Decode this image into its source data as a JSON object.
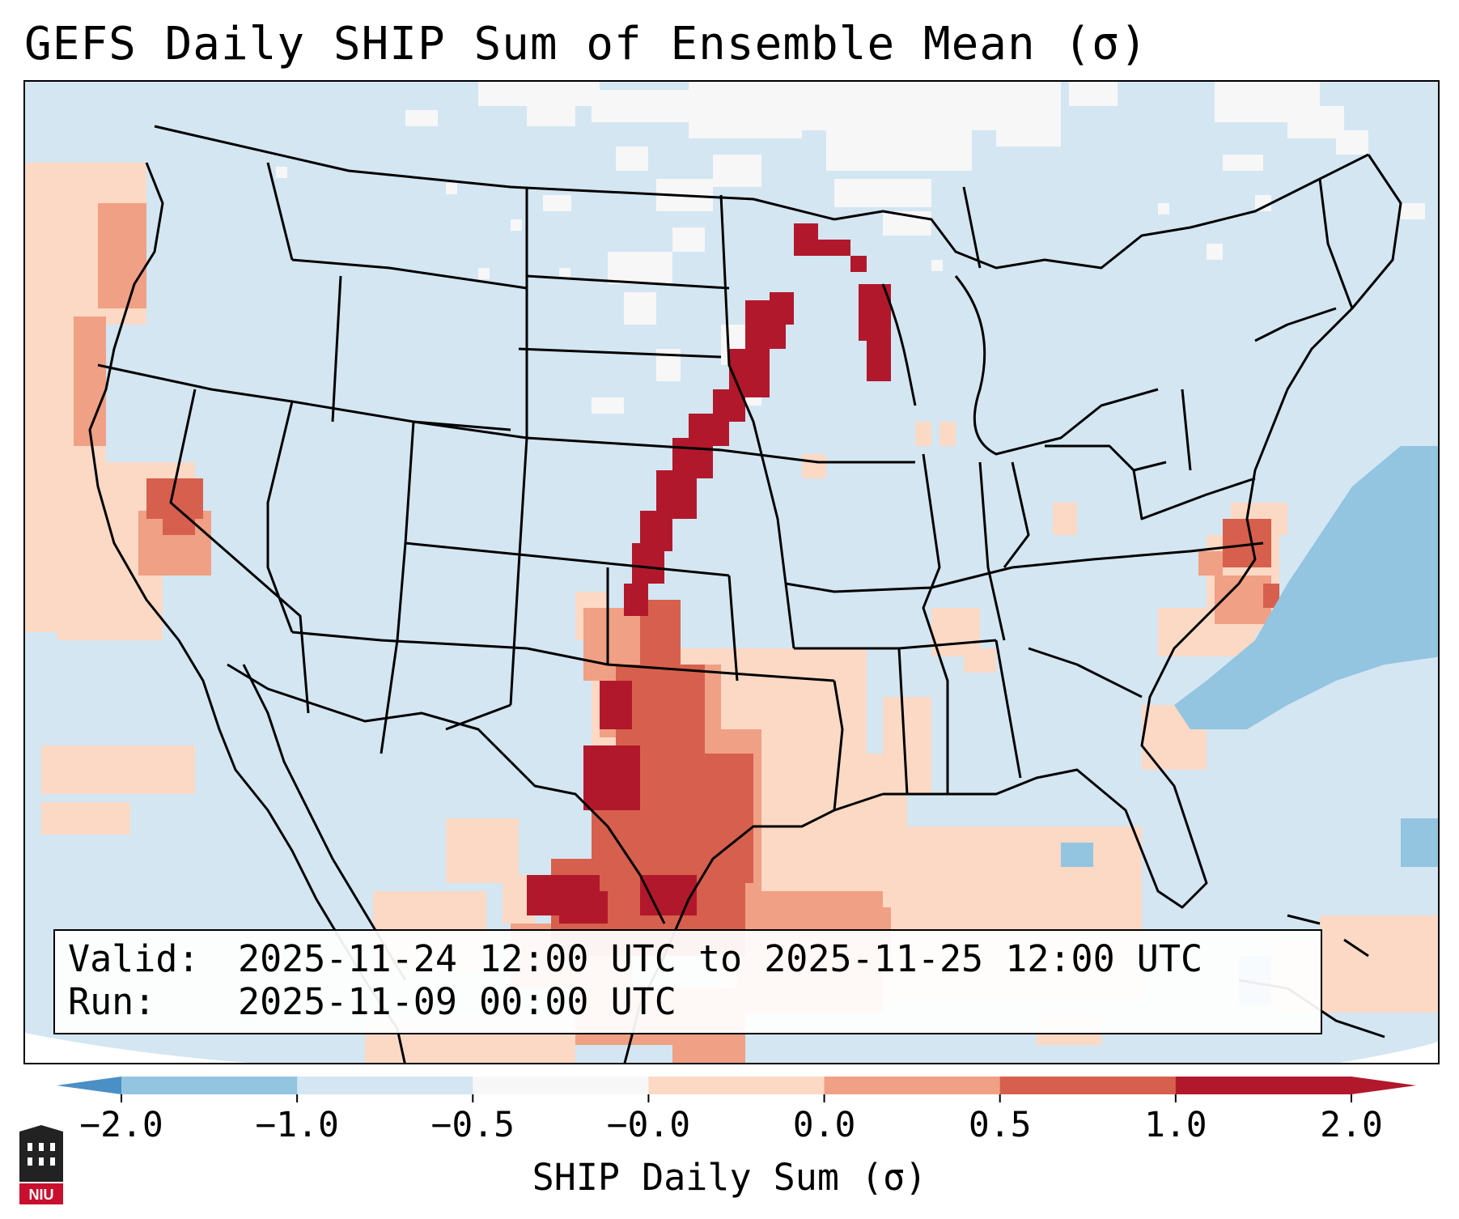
{
  "title": "GEFS Daily SHIP Sum of Ensemble Mean (σ)",
  "info": {
    "valid_label": "Valid:",
    "valid_value": "2025-11-24 12:00 UTC to 2025-11-25 12:00 UTC",
    "run_label": "Run:",
    "run_value": "2025-11-09 00:00 UTC"
  },
  "colorbar": {
    "label": "SHIP Daily Sum (σ)",
    "ticks": [
      "−2.0",
      "−1.0",
      "−0.5",
      "−0.0",
      "0.0",
      "0.5",
      "1.0",
      "2.0"
    ],
    "colors": [
      "#4a8fc6",
      "#93c4e0",
      "#d3e6f2",
      "#f7f7f7",
      "#fbd9c5",
      "#f0a084",
      "#d6604d",
      "#b2182b"
    ],
    "extend": "both"
  },
  "logo": {
    "text": "NIU"
  },
  "map": {
    "region": "Contiguous United States",
    "field": "SHIP daily sum anomaly (σ)"
  }
}
